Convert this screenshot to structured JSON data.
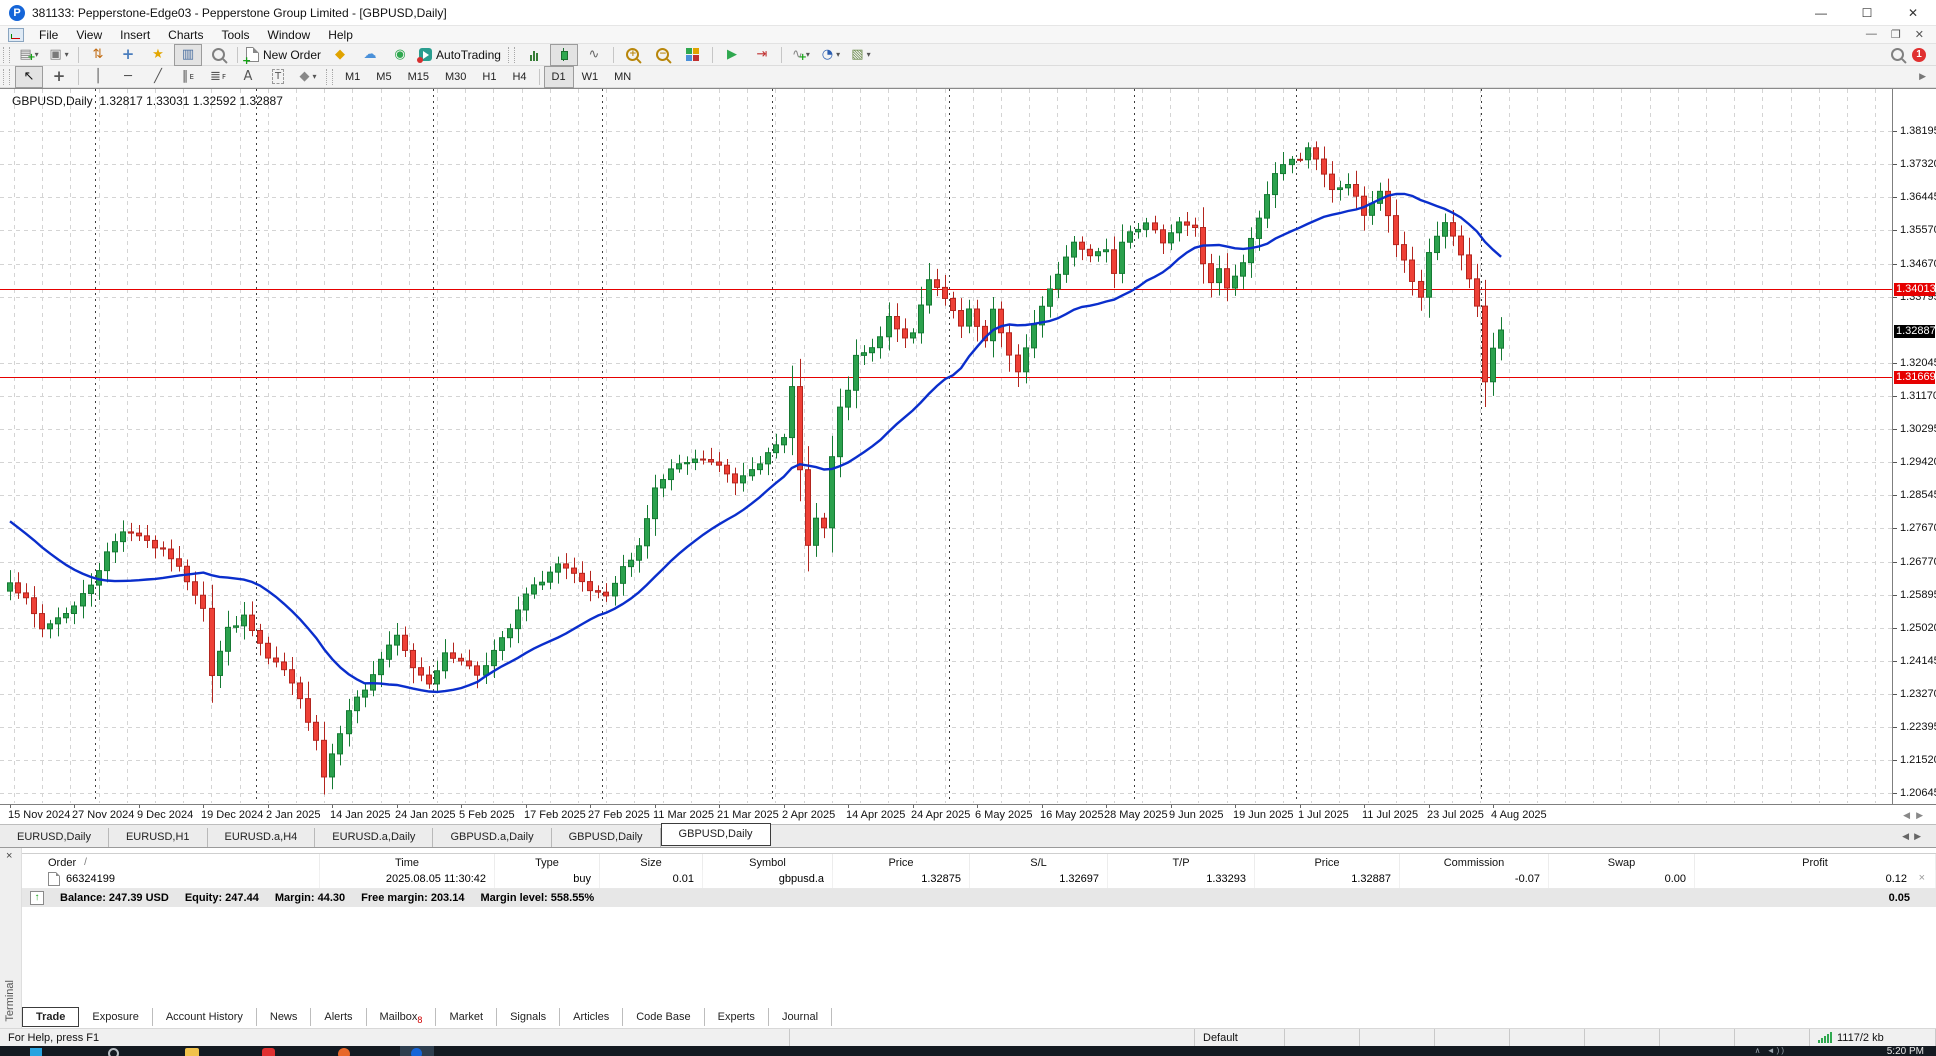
{
  "window": {
    "title": "381133: Pepperstone-Edge03 - Pepperstone Group Limited - [GBPUSD,Daily]",
    "controls": {
      "minimize": "—",
      "maximize": "☐",
      "close": "✕"
    }
  },
  "menu": {
    "items": [
      "File",
      "View",
      "Insert",
      "Charts",
      "Tools",
      "Window",
      "Help"
    ],
    "mdi_controls": [
      "—",
      "❐",
      "✕"
    ]
  },
  "toolbar": {
    "row1": [
      {
        "name": "new-chart",
        "dropdown": true
      },
      {
        "name": "profiles",
        "dropdown": true
      },
      {
        "sep": true
      },
      {
        "name": "market-watch"
      },
      {
        "name": "data-window"
      },
      {
        "name": "navigator"
      },
      {
        "name": "terminal",
        "pressed": true
      },
      {
        "name": "strategy-tester"
      },
      {
        "sep": true
      },
      {
        "name": "new-order",
        "label": "New Order"
      },
      {
        "name": "metaeditor"
      },
      {
        "name": "publish"
      },
      {
        "name": "community"
      },
      {
        "name": "autotrading",
        "label": "AutoTrading"
      },
      {
        "grip": true
      },
      {
        "name": "bar-chart"
      },
      {
        "name": "candlestick",
        "pressed": true
      },
      {
        "name": "line-chart"
      },
      {
        "sep": true
      },
      {
        "name": "zoom-in"
      },
      {
        "name": "zoom-out"
      },
      {
        "name": "tile-windows"
      },
      {
        "sep": true
      },
      {
        "name": "auto-scroll"
      },
      {
        "name": "chart-shift"
      },
      {
        "sep": true
      },
      {
        "name": "indicators",
        "dropdown": true
      },
      {
        "name": "periods",
        "dropdown": true
      },
      {
        "name": "templates",
        "dropdown": true
      }
    ],
    "drawing_tools": [
      {
        "name": "cursor",
        "pressed": true
      },
      {
        "name": "crosshair"
      },
      {
        "sep": true
      },
      {
        "name": "vertical-line"
      },
      {
        "name": "horizontal-line"
      },
      {
        "name": "trendline"
      },
      {
        "name": "equidistant-channel",
        "sub": "E"
      },
      {
        "name": "fibonacci",
        "sub": "F"
      },
      {
        "name": "text"
      },
      {
        "name": "text-label"
      },
      {
        "name": "arrows",
        "dropdown": true
      }
    ],
    "timeframes": [
      "M1",
      "M5",
      "M15",
      "M30",
      "H1",
      "H4",
      "D1",
      "W1",
      "MN"
    ],
    "active_timeframe": "D1",
    "notification_badge": "1"
  },
  "chart": {
    "symbol_period": "GBPUSD,Daily",
    "ohlc": "1.32817 1.33031 1.32592 1.32887"
  },
  "chart_data": {
    "type": "candlestick",
    "symbol": "GBPUSD",
    "timeframe": "Daily",
    "open": "1.32817",
    "high": "1.33031",
    "low": "1.32592",
    "close": "1.32887",
    "y_axis_labels": [
      "1.38195",
      "1.37320",
      "1.36445",
      "1.35570",
      "1.34670",
      "1.33795",
      "1.32045",
      "1.31170",
      "1.30295",
      "1.29420",
      "1.28545",
      "1.27670",
      "1.26770",
      "1.25895",
      "1.25020",
      "1.24145",
      "1.23270",
      "1.22395",
      "1.21520",
      "1.20645"
    ],
    "current_price": "1.32887",
    "line_markers": [
      "1.34013",
      "1.31669"
    ],
    "x_axis_labels": [
      "15 Nov 2024",
      "27 Nov 2024",
      "9 Dec 2024",
      "19 Dec 2024",
      "2 Jan 2025",
      "14 Jan 2025",
      "24 Jan 2025",
      "5 Feb 2025",
      "17 Feb 2025",
      "27 Feb 2025",
      "11 Mar 2025",
      "21 Mar 2025",
      "2 Apr 2025",
      "14 Apr 2025",
      "24 Apr 2025",
      "6 May 2025",
      "16 May 2025",
      "28 May 2025",
      "9 Jun 2025",
      "19 Jun 2025",
      "1 Jul 2025",
      "11 Jul 2025",
      "23 Jul 2025",
      "4 Aug 2025"
    ],
    "label_step": 8,
    "candle_count": 186,
    "month_separators": [
      11,
      31,
      53,
      74,
      95,
      117,
      140,
      160,
      183
    ],
    "ma_period": 20,
    "prehistory": [
      1.295,
      1.293,
      1.291,
      1.289,
      1.287,
      1.285,
      1.284,
      1.283,
      1.281,
      1.28,
      1.279,
      1.278,
      1.277,
      1.276,
      1.275,
      1.274,
      1.272,
      1.27,
      1.268,
      1.266
    ],
    "close_keyframes": [
      [
        0,
        1.263
      ],
      [
        2,
        1.2575
      ],
      [
        4,
        1.25
      ],
      [
        6,
        1.253
      ],
      [
        8,
        1.256
      ],
      [
        10,
        1.262
      ],
      [
        12,
        1.27
      ],
      [
        14,
        1.2762
      ],
      [
        16,
        1.275
      ],
      [
        18,
        1.2718
      ],
      [
        20,
        1.269
      ],
      [
        22,
        1.263
      ],
      [
        24,
        1.256
      ],
      [
        25,
        1.238
      ],
      [
        27,
        1.25
      ],
      [
        29,
        1.253
      ],
      [
        31,
        1.246
      ],
      [
        32,
        1.242
      ],
      [
        34,
        1.239
      ],
      [
        36,
        1.231
      ],
      [
        38,
        1.221
      ],
      [
        39,
        1.211
      ],
      [
        40,
        1.217
      ],
      [
        42,
        1.229
      ],
      [
        44,
        1.234
      ],
      [
        46,
        1.242
      ],
      [
        48,
        1.248
      ],
      [
        50,
        1.24
      ],
      [
        52,
        1.236
      ],
      [
        54,
        1.243
      ],
      [
        56,
        1.242
      ],
      [
        58,
        1.238
      ],
      [
        60,
        1.244
      ],
      [
        62,
        1.25
      ],
      [
        64,
        1.259
      ],
      [
        66,
        1.263
      ],
      [
        68,
        1.267
      ],
      [
        70,
        1.264
      ],
      [
        72,
        1.26
      ],
      [
        74,
        1.258
      ],
      [
        76,
        1.266
      ],
      [
        78,
        1.272
      ],
      [
        80,
        1.287
      ],
      [
        82,
        1.292
      ],
      [
        84,
        1.294
      ],
      [
        86,
        1.295
      ],
      [
        88,
        1.293
      ],
      [
        90,
        1.289
      ],
      [
        92,
        1.293
      ],
      [
        94,
        1.296
      ],
      [
        96,
        1.3005
      ],
      [
        97,
        1.315
      ],
      [
        98,
        1.292
      ],
      [
        99,
        1.272
      ],
      [
        100,
        1.279
      ],
      [
        101,
        1.276
      ],
      [
        102,
        1.296
      ],
      [
        103,
        1.308
      ],
      [
        104,
        1.313
      ],
      [
        105,
        1.322
      ],
      [
        107,
        1.324
      ],
      [
        109,
        1.332
      ],
      [
        111,
        1.327
      ],
      [
        112,
        1.329
      ],
      [
        114,
        1.343
      ],
      [
        115,
        1.34
      ],
      [
        117,
        1.334
      ],
      [
        118,
        1.33
      ],
      [
        119,
        1.334
      ],
      [
        120,
        1.33
      ],
      [
        121,
        1.326
      ],
      [
        122,
        1.334
      ],
      [
        124,
        1.323
      ],
      [
        125,
        1.318
      ],
      [
        127,
        1.33
      ],
      [
        128,
        1.336
      ],
      [
        130,
        1.344
      ],
      [
        132,
        1.353
      ],
      [
        134,
        1.349
      ],
      [
        136,
        1.351
      ],
      [
        137,
        1.345
      ],
      [
        138,
        1.353
      ],
      [
        139,
        1.356
      ],
      [
        141,
        1.357
      ],
      [
        143,
        1.353
      ],
      [
        145,
        1.358
      ],
      [
        147,
        1.356
      ],
      [
        148,
        1.347
      ],
      [
        149,
        1.342
      ],
      [
        150,
        1.345
      ],
      [
        151,
        1.34
      ],
      [
        152,
        1.343
      ],
      [
        153,
        1.347
      ],
      [
        154,
        1.353
      ],
      [
        155,
        1.359
      ],
      [
        156,
        1.365
      ],
      [
        157,
        1.371
      ],
      [
        158,
        1.373
      ],
      [
        160,
        1.375
      ],
      [
        161,
        1.3779
      ],
      [
        162,
        1.374
      ],
      [
        164,
        1.366
      ],
      [
        166,
        1.368
      ],
      [
        168,
        1.36
      ],
      [
        170,
        1.366
      ],
      [
        172,
        1.352
      ],
      [
        174,
        1.342
      ],
      [
        175,
        1.338
      ],
      [
        176,
        1.35
      ],
      [
        178,
        1.358
      ],
      [
        180,
        1.349
      ],
      [
        182,
        1.335
      ],
      [
        183,
        1.3155
      ],
      [
        184,
        1.3245
      ],
      [
        185,
        1.3289
      ]
    ],
    "colors": {
      "bull": "#2ba14d",
      "bull_border": "#157a33",
      "bear": "#ee4036",
      "bear_border": "#b3251e",
      "ma": "#0a2ecc",
      "grid": "#d4d4d4",
      "month_line": "#3c3c3c",
      "hline": "#e60000",
      "current_bg": "#000000",
      "marker_bg": "#e60000"
    }
  },
  "chart_tabs": {
    "tabs": [
      "EURUSD,Daily",
      "EURUSD,H1",
      "EURUSD.a,H4",
      "EURUSD.a,Daily",
      "GBPUSD.a,Daily",
      "GBPUSD,Daily",
      "GBPUSD,Daily"
    ],
    "active_index": 6
  },
  "terminal": {
    "columns": [
      "Order",
      "Time",
      "Type",
      "Size",
      "Symbol",
      "Price",
      "S/L",
      "T/P",
      "Price",
      "Commission",
      "Swap",
      "Profit"
    ],
    "sort_indicator": "/",
    "orders": [
      {
        "order": "66324199",
        "time": "2025.08.05 11:30:42",
        "type": "buy",
        "size": "0.01",
        "symbol": "gbpusd.a",
        "price": "1.32875",
        "sl": "1.32697",
        "tp": "1.33293",
        "price2": "1.32887",
        "commission": "-0.07",
        "swap": "0.00",
        "profit": "0.12"
      }
    ],
    "balance": {
      "balance": "Balance: 247.39 USD",
      "equity": "Equity: 247.44",
      "margin": "Margin: 44.30",
      "free_margin": "Free margin: 203.14",
      "margin_level": "Margin level: 558.55%",
      "total_profit": "0.05"
    },
    "tabs": [
      "Trade",
      "Exposure",
      "Account History",
      "News",
      "Alerts",
      "Mailbox",
      "Market",
      "Signals",
      "Articles",
      "Code Base",
      "Experts",
      "Journal"
    ],
    "active_tab": "Trade",
    "mailbox_badge": "8",
    "side_label": "Terminal"
  },
  "status_bar": {
    "help": "For Help, press F1",
    "profile": "Default",
    "traffic": "1117/2 kb"
  },
  "taskbar": {
    "clock": "5:20 PM"
  }
}
